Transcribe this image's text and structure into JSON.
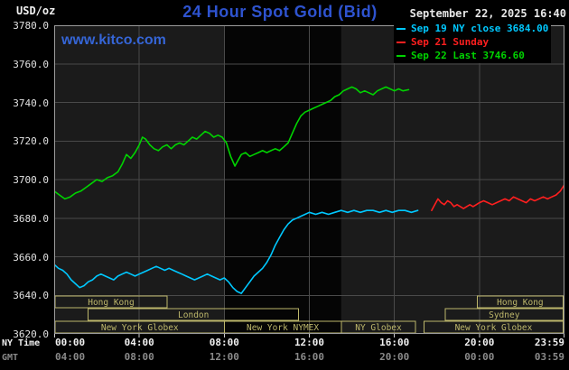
{
  "header": {
    "units_label": "USD/oz",
    "title": "24 Hour Spot Gold (Bid)",
    "datetime": "September 22, 2025 16:40"
  },
  "watermark": {
    "text": "www.kitco.com"
  },
  "axes_labels": {
    "ny": "NY Time",
    "gmt": "GMT"
  },
  "legend": {
    "items": [
      {
        "label": "Sep 19 NY close 3684.00",
        "color": "#00c8ff"
      },
      {
        "label": "Sep 21 Sunday",
        "color": "#ff1f1f"
      },
      {
        "label": "Sep 22 Last 3746.60",
        "color": "#00d300"
      }
    ]
  },
  "colors": {
    "background": "#000000",
    "plot_bg": "#1b1b1b",
    "nymex_band": "#050505",
    "grid": "#4a4a4a",
    "border": "#9c9c9c",
    "title_blue": "#2e53cf",
    "kitco_blue": "#3565d6",
    "axis_text": "#e2e2e2",
    "gmt_text": "#8a8a8a",
    "session": "#bdb76b",
    "tick": "#cccccc"
  },
  "chart_data": {
    "type": "line",
    "title": "24 Hour Spot Gold (Bid)",
    "ylabel": "USD/oz",
    "ylim": [
      3620,
      3780
    ],
    "xlim_hours": [
      0,
      24
    ],
    "grid": true,
    "legend_position": "top-right",
    "y_ticks": [
      3780,
      3760,
      3740,
      3720,
      3700,
      3680,
      3660,
      3640,
      3620
    ],
    "x_ticks": [
      {
        "hour": 0,
        "ny": "00:00",
        "gmt": "04:00"
      },
      {
        "hour": 4,
        "ny": "04:00",
        "gmt": "08:00"
      },
      {
        "hour": 8,
        "ny": "08:00",
        "gmt": "12:00"
      },
      {
        "hour": 12,
        "ny": "12:00",
        "gmt": "16:00"
      },
      {
        "hour": 16,
        "ny": "16:00",
        "gmt": "20:00"
      },
      {
        "hour": 20,
        "ny": "20:00",
        "gmt": "00:00"
      },
      {
        "hour": 23.983,
        "ny": "23:59",
        "gmt": "03:59"
      }
    ],
    "nymex_band_hours": [
      8,
      13.5
    ],
    "sessions": [
      {
        "id": "hong-kong-early",
        "label": "Hong Kong",
        "row": 0,
        "start": 0.05,
        "end": 5.3
      },
      {
        "id": "hong-kong-late",
        "label": "Hong Kong",
        "row": 0,
        "start": 19.9,
        "end": 23.93
      },
      {
        "id": "london",
        "label": "London",
        "row": 1,
        "start": 1.6,
        "end": 11.5
      },
      {
        "id": "sydney",
        "label": "Sydney",
        "row": 1,
        "start": 18.4,
        "end": 23.93
      },
      {
        "id": "ny-globex-early",
        "label": "New York Globex",
        "row": 2,
        "start": 0.05,
        "end": 8
      },
      {
        "id": "ny-nymex",
        "label": "New York NYMEX",
        "row": 2,
        "start": 8,
        "end": 13.5
      },
      {
        "id": "ny-globex-mid",
        "label": "NY Globex",
        "row": 2,
        "start": 13.5,
        "end": 17
      },
      {
        "id": "ny-globex-late",
        "label": "New York Globex",
        "row": 2,
        "start": 17.4,
        "end": 23.93
      }
    ],
    "series": [
      {
        "id": "sep19",
        "name": "Sep 19 NY close",
        "close": 3684.0,
        "color": "#00c8ff",
        "points": [
          [
            0,
            3656
          ],
          [
            0.2,
            3654
          ],
          [
            0.4,
            3653
          ],
          [
            0.6,
            3651
          ],
          [
            0.8,
            3648
          ],
          [
            1,
            3646
          ],
          [
            1.2,
            3644
          ],
          [
            1.4,
            3645
          ],
          [
            1.6,
            3647
          ],
          [
            1.8,
            3648
          ],
          [
            2,
            3650
          ],
          [
            2.2,
            3651
          ],
          [
            2.4,
            3650
          ],
          [
            2.6,
            3649
          ],
          [
            2.8,
            3648
          ],
          [
            3,
            3650
          ],
          [
            3.2,
            3651
          ],
          [
            3.4,
            3652
          ],
          [
            3.6,
            3651
          ],
          [
            3.8,
            3650
          ],
          [
            4,
            3651
          ],
          [
            4.2,
            3652
          ],
          [
            4.4,
            3653
          ],
          [
            4.6,
            3654
          ],
          [
            4.8,
            3655
          ],
          [
            5,
            3654
          ],
          [
            5.2,
            3653
          ],
          [
            5.4,
            3654
          ],
          [
            5.6,
            3653
          ],
          [
            5.8,
            3652
          ],
          [
            6,
            3651
          ],
          [
            6.2,
            3650
          ],
          [
            6.4,
            3649
          ],
          [
            6.6,
            3648
          ],
          [
            6.8,
            3649
          ],
          [
            7,
            3650
          ],
          [
            7.2,
            3651
          ],
          [
            7.4,
            3650
          ],
          [
            7.6,
            3649
          ],
          [
            7.8,
            3648
          ],
          [
            8,
            3649
          ],
          [
            8.2,
            3647
          ],
          [
            8.4,
            3644
          ],
          [
            8.6,
            3642
          ],
          [
            8.8,
            3641
          ],
          [
            9,
            3644
          ],
          [
            9.2,
            3647
          ],
          [
            9.4,
            3650
          ],
          [
            9.6,
            3652
          ],
          [
            9.8,
            3654
          ],
          [
            10,
            3657
          ],
          [
            10.2,
            3661
          ],
          [
            10.4,
            3666
          ],
          [
            10.6,
            3670
          ],
          [
            10.8,
            3674
          ],
          [
            11,
            3677
          ],
          [
            11.2,
            3679
          ],
          [
            11.4,
            3680
          ],
          [
            11.6,
            3681
          ],
          [
            11.8,
            3682
          ],
          [
            12,
            3683
          ],
          [
            12.3,
            3682
          ],
          [
            12.6,
            3683
          ],
          [
            12.9,
            3682
          ],
          [
            13.2,
            3683
          ],
          [
            13.5,
            3684
          ],
          [
            13.8,
            3683
          ],
          [
            14.1,
            3684
          ],
          [
            14.4,
            3683
          ],
          [
            14.7,
            3684
          ],
          [
            15,
            3684
          ],
          [
            15.3,
            3683
          ],
          [
            15.6,
            3684
          ],
          [
            15.9,
            3683
          ],
          [
            16.2,
            3684
          ],
          [
            16.5,
            3684
          ],
          [
            16.8,
            3683
          ],
          [
            17.1,
            3684
          ]
        ]
      },
      {
        "id": "sep21",
        "name": "Sep 21 Sunday",
        "color": "#ff1f1f",
        "points": [
          [
            17.75,
            3684
          ],
          [
            17.9,
            3687
          ],
          [
            18.05,
            3690
          ],
          [
            18.2,
            3688
          ],
          [
            18.35,
            3687
          ],
          [
            18.5,
            3689
          ],
          [
            18.65,
            3688
          ],
          [
            18.8,
            3686
          ],
          [
            18.95,
            3687
          ],
          [
            19.1,
            3686
          ],
          [
            19.25,
            3685
          ],
          [
            19.4,
            3686
          ],
          [
            19.55,
            3687
          ],
          [
            19.7,
            3686
          ],
          [
            19.85,
            3687
          ],
          [
            20,
            3688
          ],
          [
            20.2,
            3689
          ],
          [
            20.4,
            3688
          ],
          [
            20.6,
            3687
          ],
          [
            20.8,
            3688
          ],
          [
            21,
            3689
          ],
          [
            21.2,
            3690
          ],
          [
            21.4,
            3689
          ],
          [
            21.6,
            3691
          ],
          [
            21.8,
            3690
          ],
          [
            22,
            3689
          ],
          [
            22.2,
            3688
          ],
          [
            22.4,
            3690
          ],
          [
            22.6,
            3689
          ],
          [
            22.8,
            3690
          ],
          [
            23,
            3691
          ],
          [
            23.2,
            3690
          ],
          [
            23.4,
            3691
          ],
          [
            23.6,
            3692
          ],
          [
            23.8,
            3694
          ],
          [
            23.98,
            3697
          ]
        ]
      },
      {
        "id": "sep22",
        "name": "Sep 22 Last",
        "last": 3746.6,
        "color": "#00d300",
        "points": [
          [
            0,
            3694
          ],
          [
            0.25,
            3692
          ],
          [
            0.5,
            3690
          ],
          [
            0.75,
            3691
          ],
          [
            1,
            3693
          ],
          [
            1.25,
            3694
          ],
          [
            1.5,
            3696
          ],
          [
            1.75,
            3698
          ],
          [
            2,
            3700
          ],
          [
            2.25,
            3699
          ],
          [
            2.5,
            3701
          ],
          [
            2.75,
            3702
          ],
          [
            3,
            3704
          ],
          [
            3.2,
            3708
          ],
          [
            3.4,
            3713
          ],
          [
            3.6,
            3711
          ],
          [
            3.8,
            3714
          ],
          [
            4,
            3718
          ],
          [
            4.15,
            3722
          ],
          [
            4.3,
            3721
          ],
          [
            4.5,
            3718
          ],
          [
            4.7,
            3716
          ],
          [
            4.9,
            3715
          ],
          [
            5.1,
            3717
          ],
          [
            5.3,
            3718
          ],
          [
            5.5,
            3716
          ],
          [
            5.7,
            3718
          ],
          [
            5.9,
            3719
          ],
          [
            6.1,
            3718
          ],
          [
            6.3,
            3720
          ],
          [
            6.5,
            3722
          ],
          [
            6.7,
            3721
          ],
          [
            6.9,
            3723
          ],
          [
            7.1,
            3725
          ],
          [
            7.3,
            3724
          ],
          [
            7.5,
            3722
          ],
          [
            7.7,
            3723
          ],
          [
            7.9,
            3722
          ],
          [
            8.1,
            3719
          ],
          [
            8.3,
            3712
          ],
          [
            8.5,
            3707
          ],
          [
            8.65,
            3710
          ],
          [
            8.8,
            3713
          ],
          [
            9,
            3714
          ],
          [
            9.2,
            3712
          ],
          [
            9.4,
            3713
          ],
          [
            9.6,
            3714
          ],
          [
            9.8,
            3715
          ],
          [
            10,
            3714
          ],
          [
            10.2,
            3715
          ],
          [
            10.4,
            3716
          ],
          [
            10.6,
            3715
          ],
          [
            10.8,
            3717
          ],
          [
            11,
            3719
          ],
          [
            11.2,
            3724
          ],
          [
            11.4,
            3729
          ],
          [
            11.6,
            3733
          ],
          [
            11.8,
            3735
          ],
          [
            12,
            3736
          ],
          [
            12.2,
            3737
          ],
          [
            12.4,
            3738
          ],
          [
            12.6,
            3739
          ],
          [
            12.8,
            3740
          ],
          [
            13,
            3741
          ],
          [
            13.2,
            3743
          ],
          [
            13.4,
            3744
          ],
          [
            13.6,
            3746
          ],
          [
            13.8,
            3747
          ],
          [
            14,
            3748
          ],
          [
            14.2,
            3747
          ],
          [
            14.4,
            3745
          ],
          [
            14.6,
            3746
          ],
          [
            14.8,
            3745
          ],
          [
            15,
            3744
          ],
          [
            15.2,
            3746
          ],
          [
            15.4,
            3747
          ],
          [
            15.6,
            3748
          ],
          [
            15.8,
            3747
          ],
          [
            16,
            3746
          ],
          [
            16.2,
            3747
          ],
          [
            16.4,
            3746
          ],
          [
            16.67,
            3746.6
          ]
        ]
      }
    ]
  }
}
